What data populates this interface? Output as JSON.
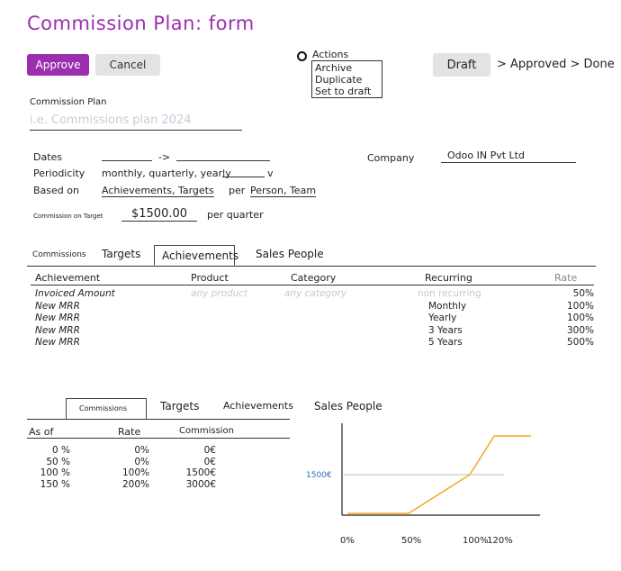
{
  "page": {
    "title": "Commission Plan: form"
  },
  "toolbar": {
    "approve_label": "Approve",
    "cancel_label": "Cancel"
  },
  "actions": {
    "label": "Actions",
    "items": [
      "Archive",
      "Duplicate",
      "Set to draft"
    ]
  },
  "status": {
    "current": "Draft",
    "rest": "> Approved > Done"
  },
  "plan": {
    "label": "Commission Plan",
    "placeholder": "i.e. Commissions plan 2024"
  },
  "fields": {
    "dates_label": "Dates",
    "dates_sep": "->",
    "periodicity_label": "Periodicity",
    "periodicity_value": "monthly, quarterly, yearly",
    "periodicity_arrow": "v",
    "based_on_label": "Based on",
    "based_on_value": "Achievements, Targets",
    "per_label": "per",
    "per_value": "Person, Team",
    "target_label": "Commission on Target",
    "target_value": "$1500.00",
    "target_suffix": "per quarter",
    "company_label": "Company",
    "company_value": "Odoo IN Pvt Ltd"
  },
  "tabs_top": [
    "Commissions",
    "Targets",
    "Achievements",
    "Sales People"
  ],
  "achievements": {
    "headers": [
      "Achievement",
      "Product",
      "Category",
      "Recurring",
      "Rate"
    ],
    "rows": [
      {
        "achievement": "Invoiced Amount",
        "product": "any product",
        "category": "any category",
        "recurring": "non recurring",
        "rate": "50%"
      },
      {
        "achievement": "New MRR",
        "product": "",
        "category": "",
        "recurring": "Monthly",
        "rate": "100%"
      },
      {
        "achievement": "New MRR",
        "product": "",
        "category": "",
        "recurring": "Yearly",
        "rate": "100%"
      },
      {
        "achievement": "New MRR",
        "product": "",
        "category": "",
        "recurring": "3 Years",
        "rate": "300%"
      },
      {
        "achievement": "New MRR",
        "product": "",
        "category": "",
        "recurring": "5 Years",
        "rate": "500%"
      }
    ]
  },
  "tabs_bottom": [
    "Commissions",
    "Targets",
    "Achievements",
    "Sales People"
  ],
  "commissions": {
    "headers": [
      "As of",
      "Rate",
      "Commission"
    ],
    "rows": [
      {
        "as_of": "0 %",
        "rate": "0%",
        "commission": "0€"
      },
      {
        "as_of": "50 %",
        "rate": "0%",
        "commission": "0€"
      },
      {
        "as_of": "100 %",
        "rate": "100%",
        "commission": "1500€"
      },
      {
        "as_of": "150 %",
        "rate": "200%",
        "commission": "3000€"
      }
    ]
  },
  "chart_data": {
    "type": "line",
    "x": [
      0,
      50,
      100,
      120,
      150
    ],
    "y": [
      0,
      0,
      1500,
      3000,
      3000
    ],
    "x_tick_labels": [
      "0%",
      "50%",
      "100%",
      "120%"
    ],
    "y_reference_label": "1500€",
    "y_reference": 1500,
    "line_color": "#f5a623",
    "title": "",
    "xlabel": "",
    "ylabel": ""
  }
}
